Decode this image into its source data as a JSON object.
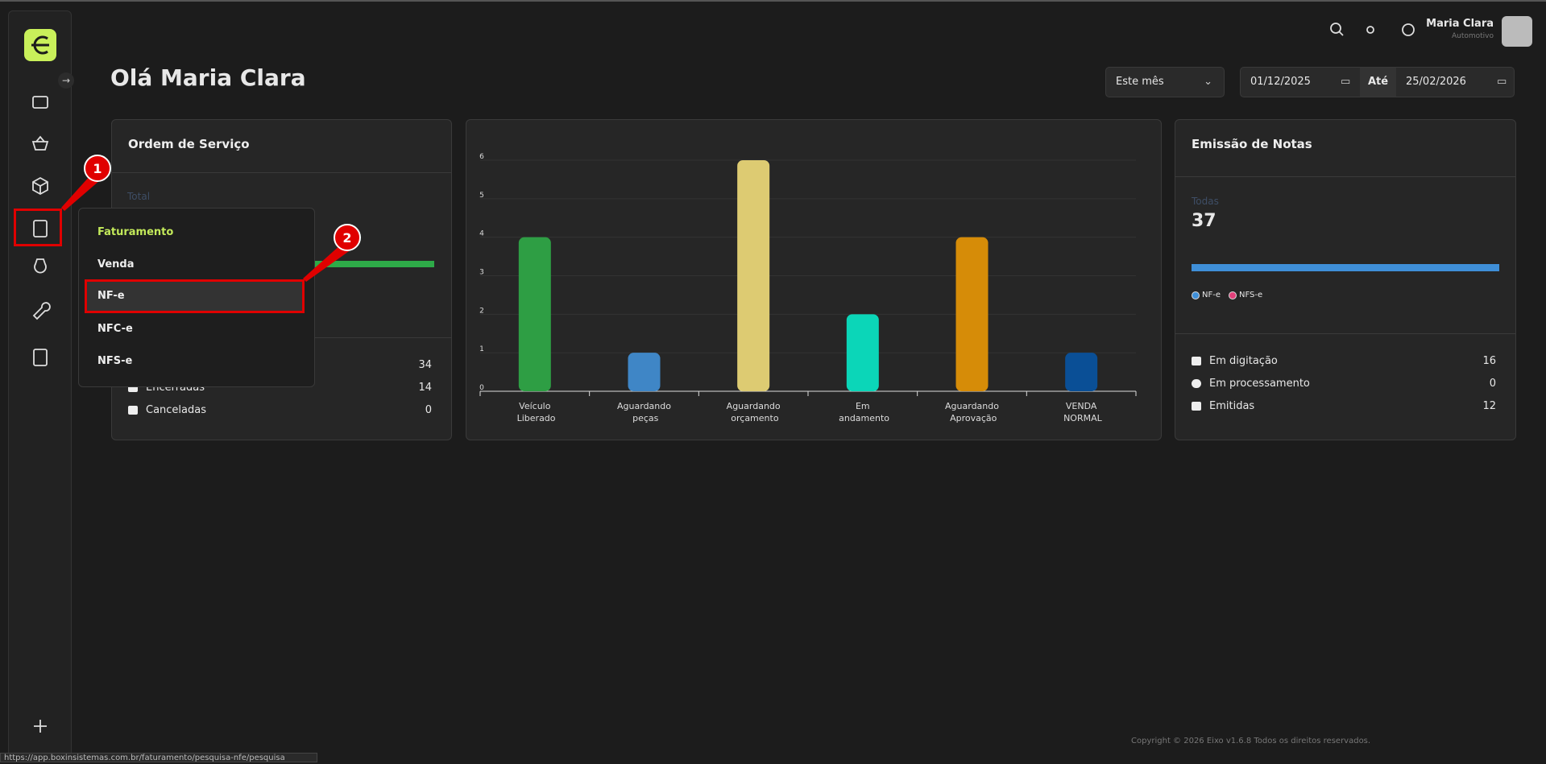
{
  "header": {
    "user_name": "Maria Clara",
    "user_company": "Automotivo"
  },
  "greeting": "Olá Maria Clara",
  "filters": {
    "period": "Este mês",
    "date_from": "01/12/2025",
    "date_to_label": "Até",
    "date_to": "25/02/2026"
  },
  "service_orders": {
    "title": "Ordem de Serviço",
    "total_label": "Total",
    "rows": [
      {
        "value": 34
      },
      {
        "label": "Encerradas",
        "value": 14
      },
      {
        "label": "Canceladas",
        "value": 0
      }
    ]
  },
  "chart_data": {
    "type": "bar",
    "categories": [
      "Veículo Liberado",
      "Aguardando peças",
      "Aguardando orçamento",
      "Em andamento",
      "Aguardando Aprovação",
      "VENDA NORMAL"
    ],
    "values": [
      4,
      1,
      6,
      2,
      4,
      1
    ],
    "colors": [
      "#2e9e44",
      "#3f86c6",
      "#ddcb72",
      "#0bd6b8",
      "#d68c08",
      "#0a4f96"
    ],
    "ylim": [
      0,
      6
    ],
    "yticks": [
      0,
      1,
      2,
      3,
      4,
      5,
      6
    ],
    "grid": true
  },
  "invoices": {
    "title": "Emissão de Notas",
    "total_label": "Todas",
    "total": 37,
    "legend": [
      {
        "name": "NF-e",
        "color": "#3f8fd8"
      },
      {
        "name": "NFS-e",
        "color": "#e0407a"
      }
    ],
    "rows": [
      {
        "label": "Em digitação",
        "value": 16
      },
      {
        "label": "Em processamento",
        "value": 0
      },
      {
        "label": "Emitidas",
        "value": 12
      }
    ]
  },
  "menu": {
    "title": "Faturamento",
    "items": [
      "Venda",
      "NF-e",
      "NFC-e",
      "NFS-e"
    ]
  },
  "annotations": [
    "1",
    "2"
  ],
  "footer": "Copyright © 2026 Eixo v1.6.8 Todos os direitos reservados.",
  "status_url": "https://app.boxinsistemas.com.br/faturamento/pesquisa-nfe/pesquisa"
}
